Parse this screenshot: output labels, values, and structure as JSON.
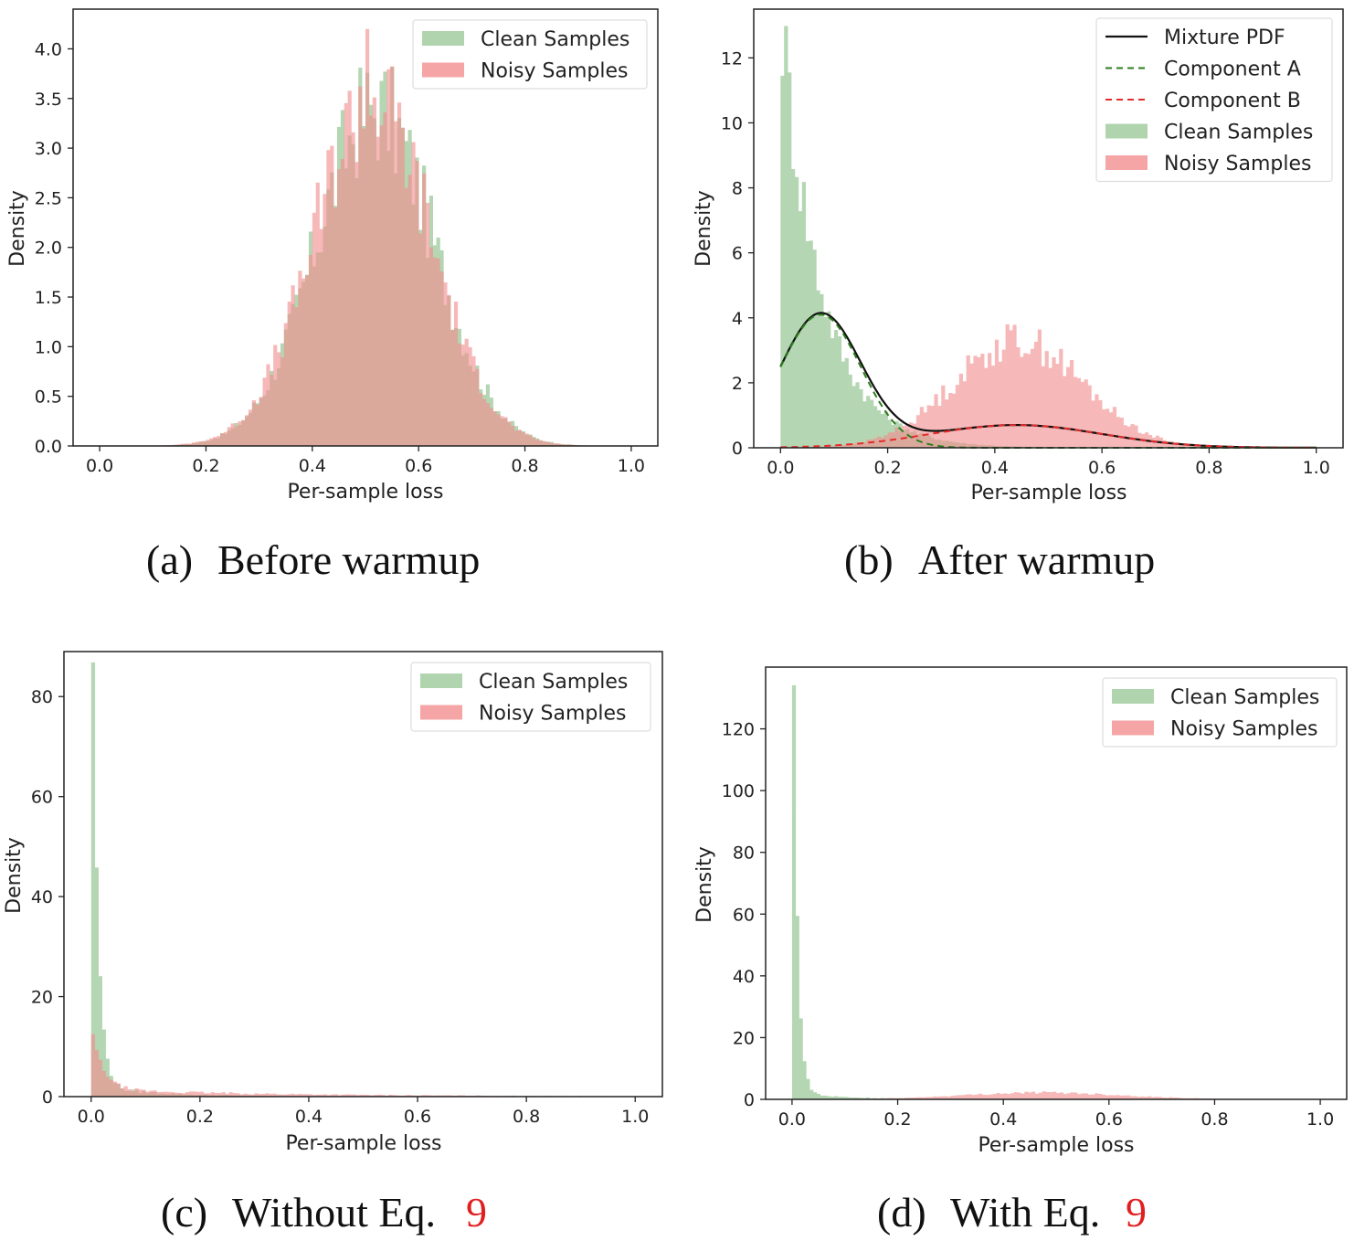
{
  "colors": {
    "clean": "#9cc99a",
    "noisy": "#f28e8e",
    "overlap": "#c08a6f",
    "mixture": "#111111",
    "component_a": "#2e7d1e",
    "component_b": "#e52b2b",
    "ref": "#e02020"
  },
  "chart_data": [
    {
      "type": "histogram",
      "caption_label": "(a)",
      "caption_text": "Before warmup",
      "xlabel": "Per-sample loss",
      "ylabel": "Density",
      "xlim": [
        -0.05,
        1.05
      ],
      "ylim": [
        0,
        4.4
      ],
      "xticks": [
        "0.0",
        "0.2",
        "0.4",
        "0.6",
        "0.8",
        "1.0"
      ],
      "yticks": [
        "0.0",
        "0.5",
        "1.0",
        "1.5",
        "2.0",
        "2.5",
        "3.0",
        "3.5",
        "4.0"
      ],
      "legend": [
        "Clean Samples",
        "Noisy Samples"
      ],
      "legend_loc": "upper right",
      "series": [
        {
          "name": "Clean Samples",
          "shape": {
            "kind": "gauss",
            "mu": 0.515,
            "sigma": 0.11,
            "peak": 3.4
          }
        },
        {
          "name": "Noisy Samples",
          "shape": {
            "kind": "gauss",
            "mu": 0.51,
            "sigma": 0.11,
            "peak": 3.5,
            "spike_x": 0.5,
            "spike_y": 4.2
          }
        }
      ]
    },
    {
      "type": "histogram",
      "caption_label": "(b)",
      "caption_text": "After warmup",
      "xlabel": "Per-sample loss",
      "ylabel": "Density",
      "xlim": [
        -0.05,
        1.05
      ],
      "ylim": [
        0,
        13.5
      ],
      "xticks": [
        "0.0",
        "0.2",
        "0.4",
        "0.6",
        "0.8",
        "1.0"
      ],
      "yticks": [
        "0",
        "2",
        "4",
        "6",
        "8",
        "10",
        "12"
      ],
      "legend": [
        "Mixture PDF",
        "Component A",
        "Component B",
        "Clean Samples",
        "Noisy Samples"
      ],
      "legend_loc": "upper right",
      "series": [
        {
          "name": "Clean Samples",
          "shape": {
            "kind": "decay",
            "y0": 12.9,
            "tau": 0.075,
            "floor": 0.0
          }
        },
        {
          "name": "Noisy Samples",
          "shape": {
            "kind": "gauss",
            "mu": 0.44,
            "sigma": 0.12,
            "peak": 3.3
          }
        }
      ],
      "mixture": {
        "component_a": {
          "mu": 0.075,
          "sigma": 0.075,
          "peak": 4.1
        },
        "component_b": {
          "mu": 0.44,
          "sigma": 0.16,
          "peak": 0.7
        }
      }
    },
    {
      "type": "histogram",
      "caption_label": "(c)",
      "caption_text": "Without Eq.",
      "caption_ref": "9",
      "xlabel": "Per-sample loss",
      "ylabel": "Density",
      "xlim": [
        -0.05,
        1.05
      ],
      "ylim": [
        0,
        89
      ],
      "xticks": [
        "0.0",
        "0.2",
        "0.4",
        "0.6",
        "0.8",
        "1.0"
      ],
      "yticks": [
        "0",
        "20",
        "40",
        "60",
        "80"
      ],
      "legend": [
        "Clean Samples",
        "Noisy Samples"
      ],
      "legend_loc": "upper right",
      "series": [
        {
          "name": "Clean Samples",
          "shape": {
            "kind": "spike",
            "y0": 85,
            "tau": 0.01,
            "tail": 2.0,
            "tail_tau": 0.12
          }
        },
        {
          "name": "Noisy Samples",
          "shape": {
            "kind": "spike",
            "y0": 11,
            "tau": 0.02,
            "tail": 1.4,
            "tail_tau": 0.35
          }
        }
      ]
    },
    {
      "type": "histogram",
      "caption_label": "(d)",
      "caption_text": "With Eq.",
      "caption_ref": "9",
      "xlabel": "Per-sample loss",
      "ylabel": "Density",
      "xlim": [
        -0.05,
        1.05
      ],
      "ylim": [
        0,
        140
      ],
      "xticks": [
        "0.0",
        "0.2",
        "0.4",
        "0.6",
        "0.8",
        "1.0"
      ],
      "yticks": [
        "0",
        "20",
        "40",
        "60",
        "80",
        "100",
        "120"
      ],
      "legend": [
        "Clean Samples",
        "Noisy Samples"
      ],
      "legend_loc": "upper right",
      "series": [
        {
          "name": "Clean Samples",
          "shape": {
            "kind": "spike",
            "y0": 132,
            "tau": 0.008,
            "tail": 2.0,
            "tail_tau": 0.1
          }
        },
        {
          "name": "Noisy Samples",
          "shape": {
            "kind": "gauss",
            "mu": 0.47,
            "sigma": 0.15,
            "peak": 2.2
          }
        }
      ]
    }
  ]
}
